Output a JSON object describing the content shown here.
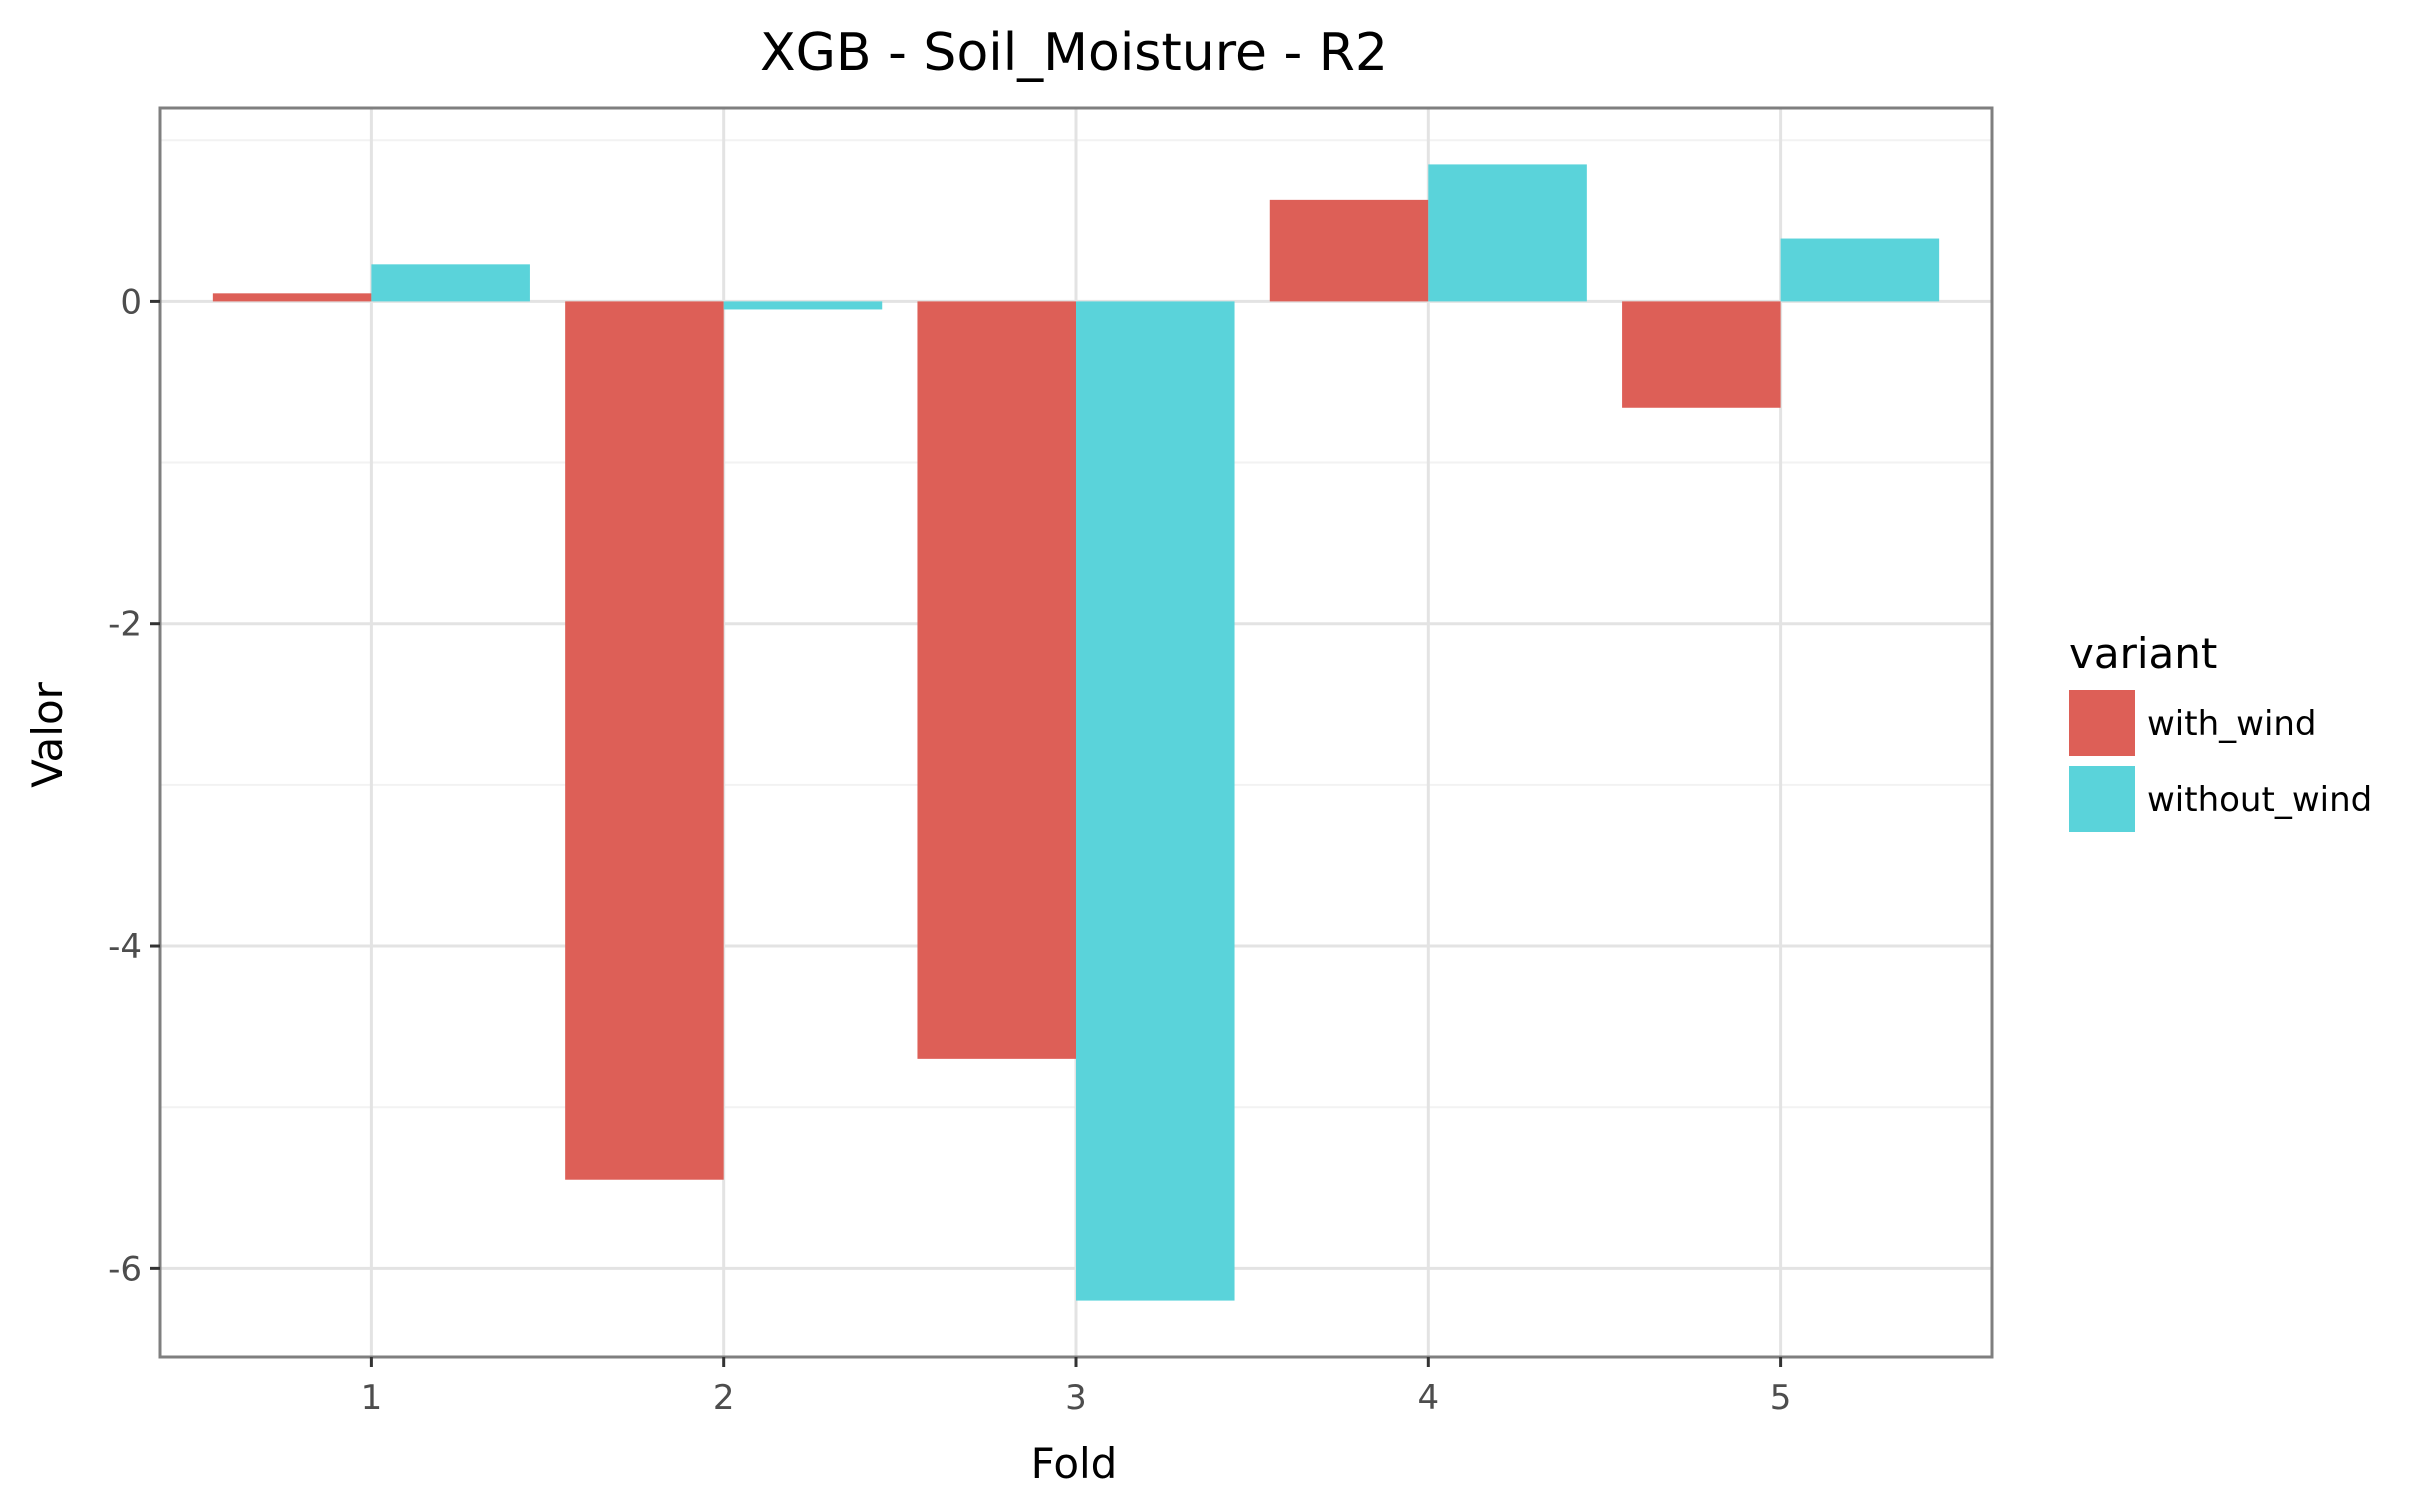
{
  "chart_data": {
    "type": "bar",
    "title": "XGB - Soil_Moisture - R2",
    "xlabel": "Fold",
    "ylabel": "Valor",
    "categories": [
      "1",
      "2",
      "3",
      "4",
      "5"
    ],
    "series": [
      {
        "name": "with_wind",
        "color": "#dd5f57",
        "values": [
          0.05,
          -5.45,
          -4.7,
          0.63,
          -0.66
        ]
      },
      {
        "name": "without_wind",
        "color": "#5ad3da",
        "values": [
          0.23,
          -0.05,
          -6.2,
          0.85,
          0.39
        ]
      }
    ],
    "ylim": [
      -6.55,
      1.2
    ],
    "yticks": [
      0,
      -2,
      -4,
      -6
    ],
    "ytick_labels": [
      "0",
      "-2",
      "-4",
      "-6"
    ],
    "legend": {
      "title": "variant",
      "position": "right"
    },
    "grid": true,
    "theme": "bw"
  }
}
